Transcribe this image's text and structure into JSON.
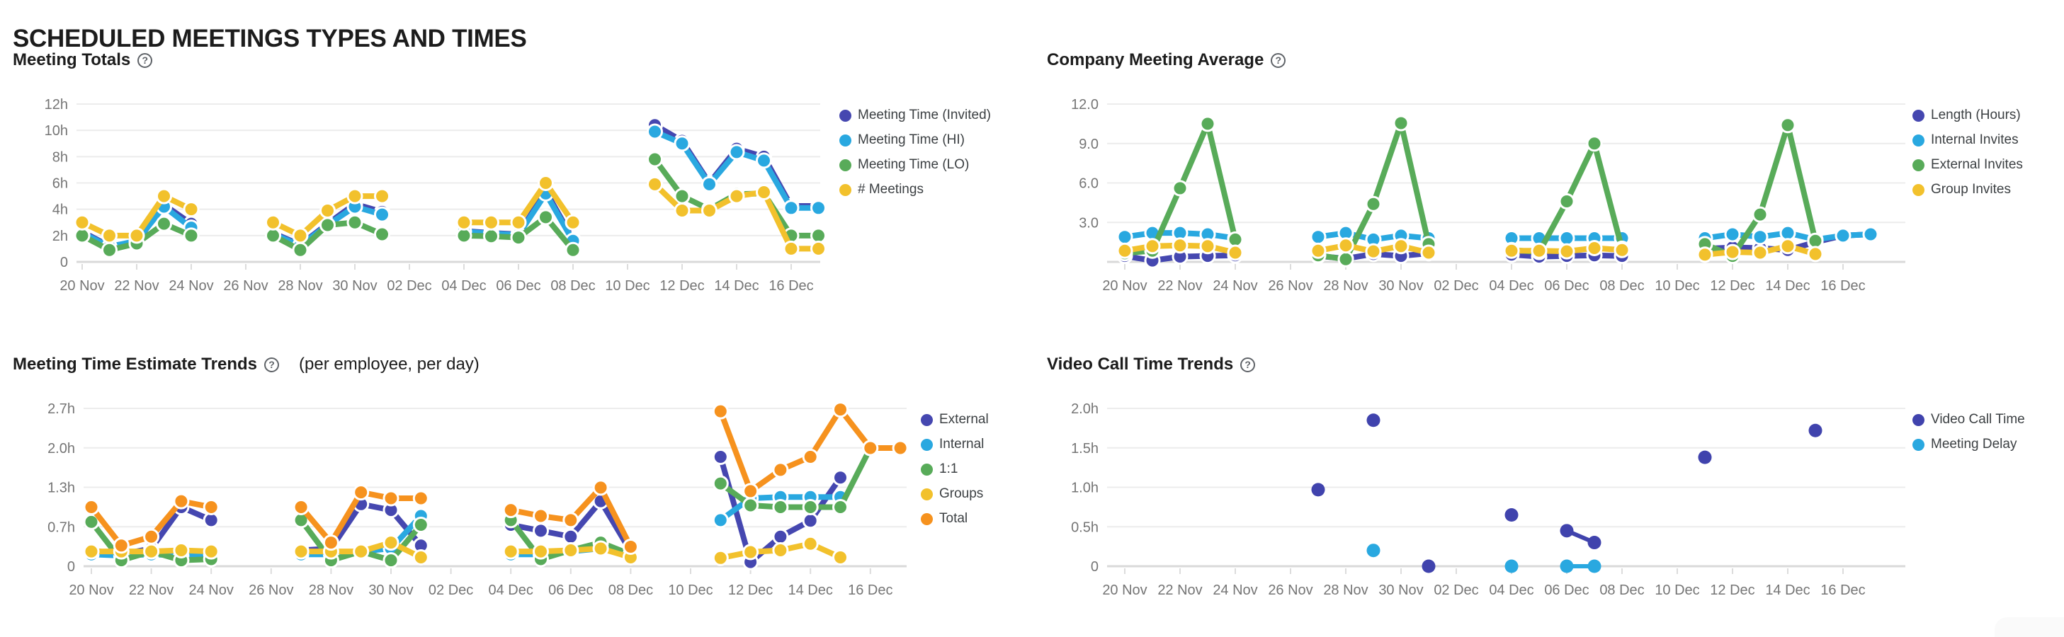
{
  "page": {
    "title": "SCHEDULED MEETINGS TYPES AND TIMES",
    "help_glyph": "?"
  },
  "x_tick_labels": [
    "20 Nov",
    "22 Nov",
    "24 Nov",
    "26 Nov",
    "28 Nov",
    "30 Nov",
    "02 Dec",
    "04 Dec",
    "06 Dec",
    "08 Dec",
    "10 Dec",
    "12 Dec",
    "14 Dec",
    "16 Dec"
  ],
  "x_dates": [
    "20 Nov",
    "21 Nov",
    "22 Nov",
    "23 Nov",
    "24 Nov",
    "25 Nov",
    "26 Nov",
    "27 Nov",
    "28 Nov",
    "29 Nov",
    "30 Nov",
    "01 Dec",
    "02 Dec",
    "03 Dec",
    "04 Dec",
    "05 Dec",
    "06 Dec",
    "07 Dec",
    "08 Dec",
    "09 Dec",
    "10 Dec",
    "11 Dec",
    "12 Dec",
    "13 Dec",
    "14 Dec",
    "15 Dec",
    "16 Dec",
    "17 Dec"
  ],
  "chart_data": [
    {
      "id": "meeting_totals",
      "title": "Meeting Totals",
      "type": "line",
      "unit": "hours",
      "y_max": 12,
      "ylim": [
        0,
        12
      ],
      "grid": true,
      "legend_position": "right",
      "y_ticks": [
        {
          "value": 0,
          "label": "0"
        },
        {
          "value": 2,
          "label": "2h"
        },
        {
          "value": 4,
          "label": "4h"
        },
        {
          "value": 6,
          "label": "6h"
        },
        {
          "value": 8,
          "label": "8h"
        },
        {
          "value": 10,
          "label": "10h"
        },
        {
          "value": 12,
          "label": "12h"
        }
      ],
      "series": [
        {
          "name": "Meeting Time (Invited)",
          "color": "#4547b0",
          "values": [
            2.3,
            1.2,
            1.5,
            4.35,
            2.9,
            null,
            null,
            2.2,
            1.3,
            2.9,
            4.4,
            3.8,
            null,
            null,
            2.35,
            2.2,
            2.1,
            5.4,
            1.7,
            null,
            null,
            10.4,
            9.2,
            6.0,
            8.6,
            8.0,
            4.25,
            4.25
          ]
        },
        {
          "name": "Meeting Time (HI)",
          "color": "#29a8e0",
          "values": [
            2.2,
            1.15,
            1.6,
            4.2,
            2.6,
            null,
            null,
            2.1,
            1.25,
            2.8,
            4.2,
            3.6,
            null,
            null,
            2.3,
            2.15,
            2.05,
            5.2,
            1.6,
            null,
            null,
            9.9,
            9.0,
            5.9,
            8.35,
            7.7,
            4.1,
            4.1
          ]
        },
        {
          "name": "Meeting Time (LO)",
          "color": "#58ab59",
          "values": [
            2.0,
            0.9,
            1.4,
            2.9,
            2.0,
            null,
            null,
            2.0,
            0.9,
            2.8,
            3.0,
            2.1,
            null,
            null,
            2.0,
            1.95,
            1.85,
            3.4,
            0.9,
            null,
            null,
            7.8,
            5.0,
            4.0,
            5.15,
            5.2,
            2.0,
            2.0
          ]
        },
        {
          "name": "# Meetings",
          "color": "#f2c12c",
          "values": [
            3.0,
            2.0,
            2.0,
            5.0,
            4.0,
            null,
            null,
            3.0,
            2.0,
            3.9,
            5.0,
            5.0,
            null,
            null,
            3.0,
            3.0,
            3.0,
            6.0,
            3.0,
            null,
            null,
            5.9,
            3.9,
            3.9,
            5.0,
            5.3,
            1.0,
            1.0
          ]
        }
      ]
    },
    {
      "id": "company_meeting_average",
      "title": "Company Meeting Average",
      "type": "line",
      "unit": "count / hours",
      "y_max": 12,
      "ylim": [
        0,
        12
      ],
      "grid": true,
      "legend_position": "right",
      "y_ticks": [
        {
          "value": 0,
          "label": ""
        },
        {
          "value": 3,
          "label": "3.0"
        },
        {
          "value": 6,
          "label": "6.0"
        },
        {
          "value": 9,
          "label": "9.0"
        },
        {
          "value": 12,
          "label": "12.0"
        }
      ],
      "series": [
        {
          "name": "Length (Hours)",
          "color": "#4547b0",
          "values": [
            0.45,
            0.1,
            0.4,
            0.45,
            0.5,
            null,
            null,
            0.45,
            0.25,
            0.6,
            0.45,
            0.65,
            null,
            null,
            0.55,
            0.4,
            0.45,
            0.5,
            0.45,
            null,
            null,
            1.0,
            1.1,
            1.05,
            0.9,
            1.5,
            2.0,
            2.1
          ]
        },
        {
          "name": "Internal Invites",
          "color": "#29a8e0",
          "values": [
            1.9,
            2.2,
            2.2,
            2.1,
            1.8,
            null,
            null,
            1.9,
            2.2,
            1.7,
            2.0,
            1.8,
            null,
            null,
            1.8,
            1.8,
            1.8,
            1.8,
            1.8,
            null,
            null,
            1.8,
            2.1,
            1.9,
            2.2,
            1.7,
            2.0,
            2.1
          ]
        },
        {
          "name": "External Invites",
          "color": "#58ab59",
          "values": [
            0.65,
            0.85,
            5.6,
            10.5,
            1.7,
            null,
            null,
            0.5,
            0.2,
            4.4,
            10.55,
            1.35,
            null,
            null,
            0.9,
            0.75,
            4.6,
            9.0,
            1.0,
            null,
            null,
            1.35,
            0.45,
            3.6,
            10.4,
            1.6,
            null,
            null
          ]
        },
        {
          "name": "Group Invites",
          "color": "#f2c12c",
          "values": [
            0.85,
            1.2,
            1.25,
            1.2,
            0.7,
            null,
            null,
            0.85,
            1.25,
            0.8,
            1.2,
            0.7,
            null,
            null,
            0.85,
            0.85,
            0.8,
            1.05,
            0.9,
            null,
            null,
            0.55,
            0.75,
            0.7,
            1.2,
            0.6,
            null,
            null
          ]
        }
      ]
    },
    {
      "id": "meeting_time_estimate_trends",
      "title": "Meeting Time Estimate Trends",
      "subtitle": "(per employee, per day)",
      "type": "line",
      "unit": "hours",
      "y_max": 2.67,
      "ylim": [
        0,
        2.67
      ],
      "grid": true,
      "legend_position": "right",
      "y_ticks": [
        {
          "value": 0,
          "label": "0"
        },
        {
          "value": 0.6675,
          "label": "0.7h"
        },
        {
          "value": 1.335,
          "label": "1.3h"
        },
        {
          "value": 2.0025,
          "label": "2.0h"
        },
        {
          "value": 2.67,
          "label": "2.7h"
        }
      ],
      "series": [
        {
          "name": "External",
          "color": "#4547b0",
          "values": [
            0.27,
            0.2,
            0.3,
            1.0,
            0.78,
            null,
            null,
            0.27,
            0.3,
            1.05,
            0.95,
            0.35,
            null,
            null,
            0.7,
            0.6,
            0.5,
            1.1,
            0.25,
            null,
            null,
            1.85,
            0.07,
            0.5,
            0.77,
            1.5,
            null,
            null
          ]
        },
        {
          "name": "Internal",
          "color": "#29a8e0",
          "values": [
            0.2,
            0.18,
            0.2,
            0.18,
            0.2,
            null,
            null,
            0.2,
            0.2,
            0.25,
            0.3,
            0.85,
            null,
            null,
            0.2,
            0.2,
            0.25,
            0.3,
            0.2,
            null,
            null,
            0.78,
            1.15,
            1.17,
            1.17,
            1.17,
            null,
            null
          ]
        },
        {
          "name": "1:1",
          "color": "#58ab59",
          "values": [
            0.75,
            0.1,
            0.25,
            0.1,
            0.12,
            null,
            null,
            0.78,
            0.1,
            0.25,
            0.1,
            0.7,
            null,
            null,
            0.78,
            0.12,
            0.27,
            0.4,
            0.2,
            null,
            null,
            1.4,
            1.03,
            1.0,
            1.0,
            1.0,
            2.0,
            2.0
          ]
        },
        {
          "name": "Groups",
          "color": "#f2c12c",
          "values": [
            0.25,
            0.25,
            0.25,
            0.27,
            0.25,
            null,
            null,
            0.25,
            0.25,
            0.25,
            0.4,
            0.15,
            null,
            null,
            0.25,
            0.25,
            0.27,
            0.3,
            0.15,
            null,
            null,
            0.14,
            0.24,
            0.27,
            0.38,
            0.15,
            null,
            null
          ]
        },
        {
          "name": "Total",
          "color": "#f6921e",
          "values": [
            1.0,
            0.35,
            0.5,
            1.1,
            1.0,
            null,
            null,
            1.0,
            0.4,
            1.25,
            1.15,
            1.15,
            null,
            null,
            0.95,
            0.85,
            0.78,
            1.33,
            0.33,
            null,
            null,
            2.62,
            1.27,
            1.63,
            1.85,
            2.65,
            2.0,
            2.0
          ]
        }
      ]
    },
    {
      "id": "video_call_time_trends",
      "title": "Video Call Time Trends",
      "type": "scatter",
      "unit": "hours",
      "y_max": 2,
      "ylim": [
        0,
        2
      ],
      "grid": true,
      "legend_position": "right",
      "y_ticks": [
        {
          "value": 0,
          "label": "0"
        },
        {
          "value": 0.5,
          "label": "0.5h"
        },
        {
          "value": 1.0,
          "label": "1.0h"
        },
        {
          "value": 1.5,
          "label": "1.5h"
        },
        {
          "value": 2.0,
          "label": "2.0h"
        }
      ],
      "series": [
        {
          "name": "Video Call Time",
          "color": "#4043ad",
          "values": [
            null,
            null,
            null,
            null,
            null,
            null,
            null,
            0.97,
            null,
            1.85,
            null,
            0,
            null,
            null,
            0.65,
            null,
            0.45,
            0.3,
            null,
            null,
            null,
            1.38,
            null,
            null,
            null,
            1.72,
            null,
            null
          ]
        },
        {
          "name": "Meeting Delay",
          "color": "#29a8e0",
          "values": [
            null,
            null,
            null,
            null,
            null,
            null,
            null,
            null,
            null,
            0.2,
            null,
            null,
            null,
            null,
            0,
            null,
            0,
            0,
            null,
            null,
            null,
            null,
            null,
            null,
            null,
            null,
            null,
            null
          ]
        }
      ]
    }
  ]
}
